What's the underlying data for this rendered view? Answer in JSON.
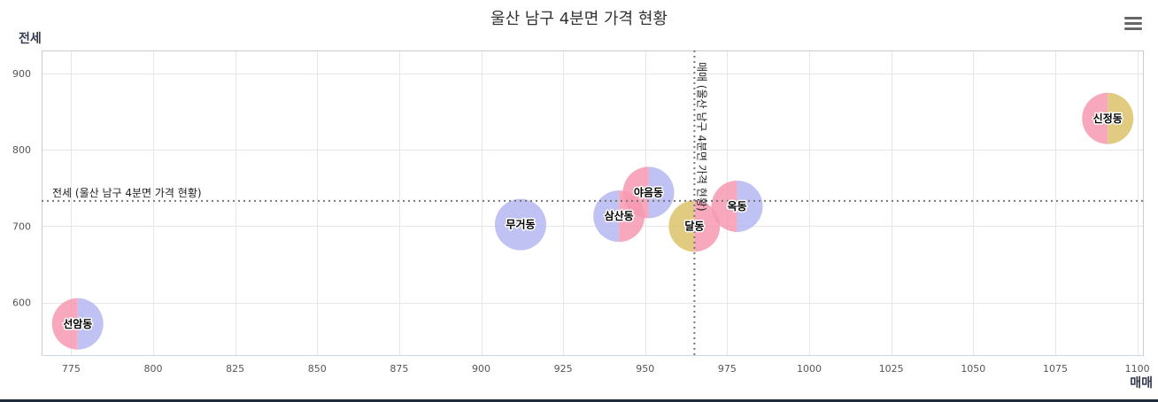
{
  "chart_data": {
    "type": "bubble",
    "title": "울산 남구 4분면 가격 현황",
    "xlabel": "매매",
    "ylabel": "전세",
    "xlim": [
      766,
      1102
    ],
    "ylim": [
      530,
      930
    ],
    "x_ticks": [
      775,
      800,
      825,
      850,
      875,
      900,
      925,
      950,
      975,
      1000,
      1025,
      1050,
      1075,
      1100
    ],
    "y_ticks": [
      600,
      700,
      800,
      900
    ],
    "grid": true,
    "reference_lines": [
      {
        "axis": "y",
        "value": 733,
        "label": "전세 (울산 남구 4분면 가격 현황)"
      },
      {
        "axis": "x",
        "value": 965,
        "label": "매매 (울산 남구 4분면 가격 현황)"
      }
    ],
    "points": [
      {
        "name": "선암동",
        "x": 777,
        "y": 572,
        "colors": [
          "#f799b2",
          "#b5b8f2"
        ]
      },
      {
        "name": "무거동",
        "x": 912,
        "y": 702,
        "colors": [
          "#b5b8f2",
          "#b5b8f2"
        ]
      },
      {
        "name": "삼산동",
        "x": 942,
        "y": 713,
        "colors": [
          "#b5b8f2",
          "#f799b2"
        ]
      },
      {
        "name": "야음동",
        "x": 951,
        "y": 744,
        "colors": [
          "#f799b2",
          "#b5b8f2"
        ]
      },
      {
        "name": "달동",
        "x": 965,
        "y": 700,
        "colors": [
          "#dcc26a",
          "#f799b2"
        ]
      },
      {
        "name": "옥동",
        "x": 978,
        "y": 726,
        "colors": [
          "#f799b2",
          "#b5b8f2"
        ]
      },
      {
        "name": "신정동",
        "x": 1091,
        "y": 841,
        "colors": [
          "#f799b2",
          "#dcc26a"
        ]
      }
    ]
  },
  "menu": {
    "icon": "hamburger-menu-icon"
  }
}
